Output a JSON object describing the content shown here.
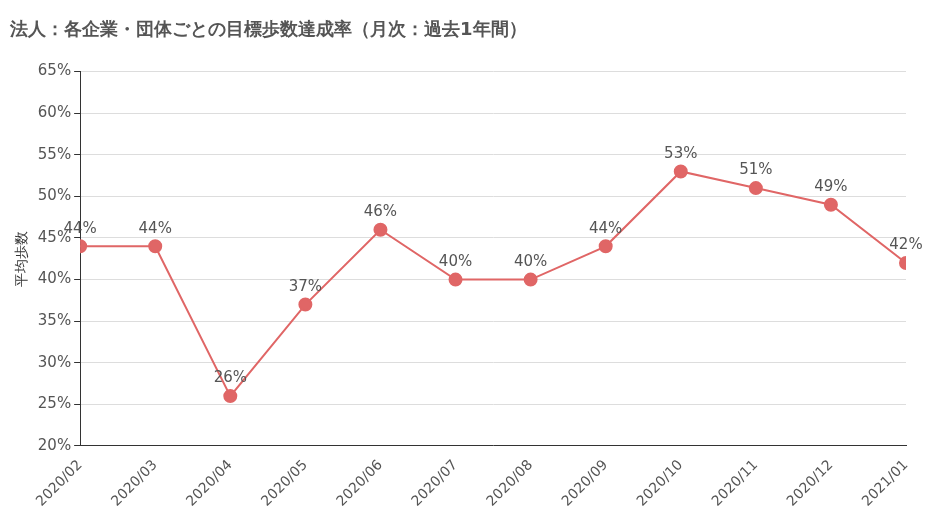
{
  "chart_data": {
    "type": "line",
    "title": "法人：各企業・団体ごとの目標歩数達成率（月次：過去1年間）",
    "y_label": "平均歩数",
    "categories": [
      "2020/02",
      "2020/03",
      "2020/04",
      "2020/05",
      "2020/06",
      "2020/07",
      "2020/08",
      "2020/09",
      "2020/10",
      "2020/11",
      "2020/12",
      "2021/01"
    ],
    "values": [
      44,
      44,
      26,
      37,
      46,
      40,
      40,
      44,
      53,
      51,
      49,
      42
    ],
    "value_labels": [
      "44%",
      "44%",
      "26%",
      "37%",
      "46%",
      "40%",
      "40%",
      "44%",
      "53%",
      "51%",
      "49%",
      "42%"
    ],
    "color": "#e06666",
    "marker": "circle",
    "line_style": "solid",
    "data_labels": true,
    "grid": true,
    "ylim": [
      20,
      65
    ],
    "yticks": [
      {
        "value": 20,
        "label": "20%"
      },
      {
        "value": 25,
        "label": "25%"
      },
      {
        "value": 30,
        "label": "30%"
      },
      {
        "value": 35,
        "label": "35%"
      },
      {
        "value": 40,
        "label": "40%"
      },
      {
        "value": 45,
        "label": "45%"
      },
      {
        "value": 50,
        "label": "50%"
      },
      {
        "value": 55,
        "label": "55%"
      },
      {
        "value": 60,
        "label": "60%"
      },
      {
        "value": 65,
        "label": "65%"
      }
    ]
  }
}
